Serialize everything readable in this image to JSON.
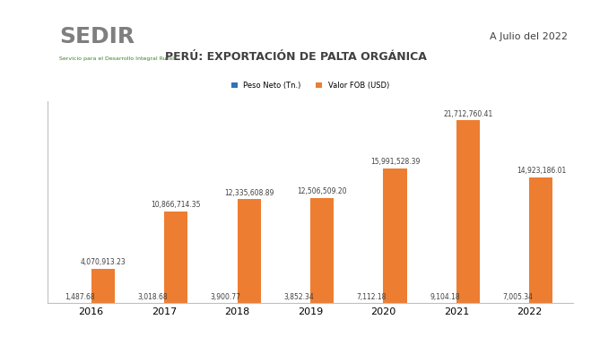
{
  "chart_data": {
    "type": "bar",
    "title": "PERÚ: EXPORTACIÓN DE PALTA ORGÁNICA",
    "subtitle": "A Julio del 2022",
    "annotations": [
      "SEDIR",
      "Servicio para el Desarrollo Integral Rural"
    ],
    "categories": [
      "2016",
      "2017",
      "2018",
      "2019",
      "2020",
      "2021",
      "2022"
    ],
    "series": [
      {
        "name": "Peso Neto (Tn.)",
        "color": "#2e75b6",
        "values": [
          1487.68,
          3018.68,
          3900.77,
          3852.34,
          7112.18,
          9104.18,
          7005.34
        ],
        "value_labels": [
          "1,487.68",
          "3,018.68",
          "3,900.77",
          "3,852.34",
          "7,112.18",
          "9,104.18",
          "7,005.34"
        ]
      },
      {
        "name": "Valor FOB (USD)",
        "color": "#ed7d31",
        "values": [
          4070913.23,
          10866714.35,
          12335608.89,
          12506509.2,
          15991528.39,
          21712760.41,
          14923186.01
        ],
        "value_labels": [
          "4,070,913.23",
          "10,866,714.35",
          "12,335,608.89",
          "12,506,509.20",
          "15,991,528.39",
          "21,712,760.41",
          "14,923,186.01"
        ]
      }
    ],
    "ylim": [
      0,
      24000000
    ],
    "grid": false,
    "legend": "upper center",
    "data_labels": true,
    "tick_labels": "x"
  }
}
